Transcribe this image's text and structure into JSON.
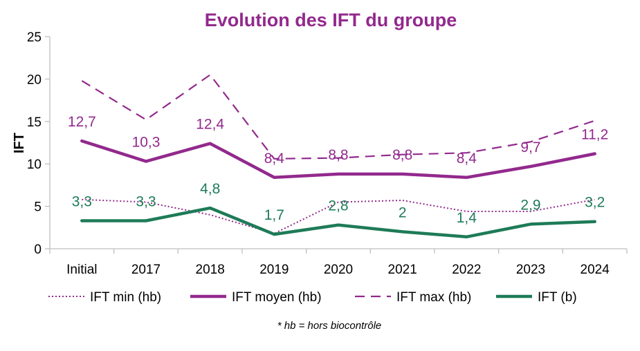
{
  "chart_data": {
    "type": "line",
    "title": "Evolution des IFT du groupe",
    "ylabel": "IFT",
    "xlabel": "",
    "categories": [
      "Initial",
      "2017",
      "2018",
      "2019",
      "2020",
      "2021",
      "2022",
      "2023",
      "2024"
    ],
    "ylim": [
      0,
      25
    ],
    "yticks": [
      0,
      5,
      10,
      15,
      20,
      25
    ],
    "grid": false,
    "legend_position": "bottom",
    "footnote": "* hb = hors biocontrôle",
    "series": [
      {
        "name": "IFT min (hb)",
        "style": "dotted",
        "color": "#92298d",
        "values": [
          5.8,
          5.5,
          4.0,
          1.8,
          5.5,
          5.7,
          4.4,
          4.4,
          5.8
        ],
        "labels": []
      },
      {
        "name": "IFT moyen (hb)",
        "style": "solid",
        "color": "#92298d",
        "values": [
          12.7,
          10.3,
          12.4,
          8.4,
          8.8,
          8.8,
          8.4,
          9.7,
          11.2
        ],
        "labels": [
          "12,7",
          "10,3",
          "12,4",
          "8,4",
          "8,8",
          "8,8",
          "8,4",
          "9,7",
          "11,2"
        ]
      },
      {
        "name": "IFT max (hb)",
        "style": "dashed",
        "color": "#92298d",
        "values": [
          19.8,
          15.2,
          20.5,
          10.6,
          10.7,
          11.1,
          11.3,
          12.6,
          15.1
        ],
        "labels": []
      },
      {
        "name": "IFT (b)",
        "style": "solid",
        "color": "#1e7b58",
        "values": [
          3.3,
          3.3,
          4.8,
          1.7,
          2.8,
          2.0,
          1.4,
          2.9,
          3.2
        ],
        "labels": [
          "3,3",
          "3,3",
          "4,8",
          "1,7",
          "2,8",
          "2",
          "1,4",
          "2,9",
          "3,2"
        ]
      }
    ]
  }
}
